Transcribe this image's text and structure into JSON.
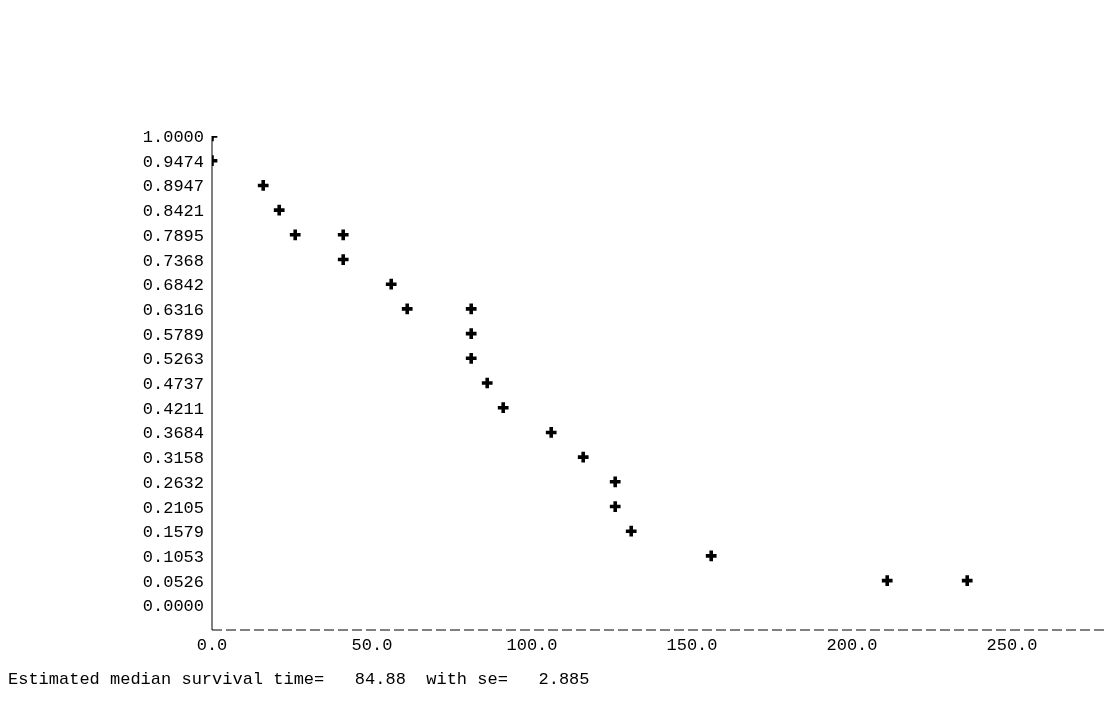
{
  "chart_data": {
    "type": "scatter",
    "marker": "cross",
    "x": [
      0,
      0,
      16,
      21,
      26,
      41,
      41,
      56,
      61,
      81,
      81,
      81,
      86,
      91,
      106,
      116,
      126,
      126,
      131,
      156,
      211,
      236
    ],
    "series": [
      {
        "color": "#000000",
        "values": [
          1.0,
          0.9474,
          0.8947,
          0.8421,
          0.7895,
          0.7895,
          0.7368,
          0.6842,
          0.6316,
          0.6316,
          0.5789,
          0.5263,
          0.4737,
          0.4211,
          0.3684,
          0.3158,
          0.2632,
          0.2105,
          0.1579,
          0.1053,
          0.0526,
          0.0526
        ]
      }
    ],
    "xlim": [
      0,
      280
    ],
    "xticks": [
      {
        "value": 0,
        "label": "0.0"
      },
      {
        "value": 50,
        "label": "50.0"
      },
      {
        "value": 100,
        "label": "100.0"
      },
      {
        "value": 150,
        "label": "150.0"
      },
      {
        "value": 200,
        "label": "200.0"
      },
      {
        "value": 250,
        "label": "250.0"
      }
    ],
    "ylim": [
      -0.0526,
      1.0
    ],
    "yticks": [
      {
        "value": 0,
        "label": "0.0000"
      },
      0.0526,
      0.1053,
      0.1579,
      0.2105,
      0.2632,
      0.3158,
      0.3684,
      0.4211,
      0.4737,
      0.5263,
      0.5789,
      0.6316,
      0.6842,
      0.7368,
      0.7895,
      0.8421,
      0.8947,
      0.9474,
      {
        "value": 1,
        "label": "1.0000"
      }
    ],
    "grid": false,
    "legend": false,
    "annotations": [
      "Estimated median survival time=   84.88  with se=   2.885"
    ]
  }
}
